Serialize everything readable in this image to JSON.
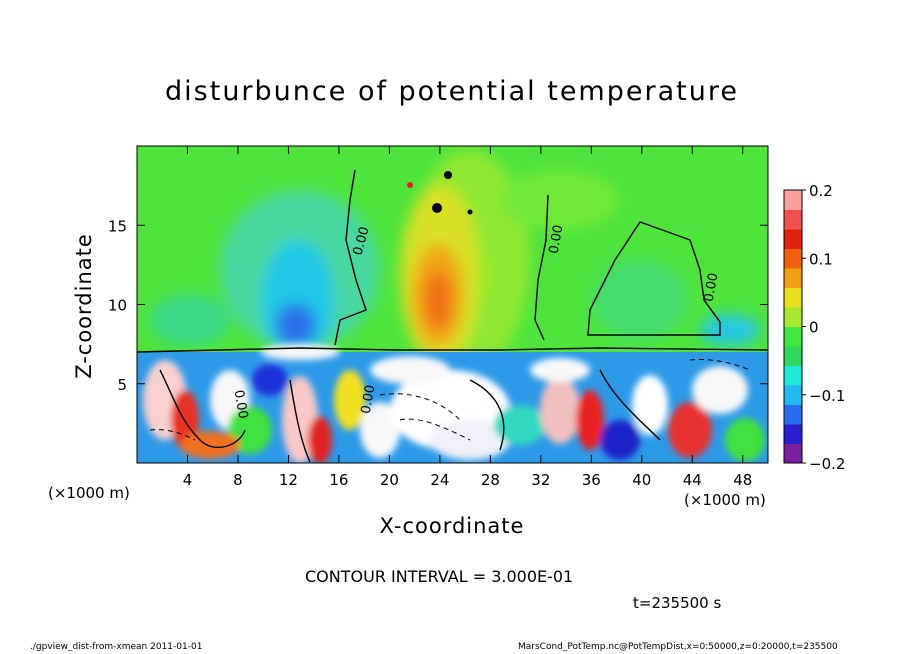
{
  "chart_data": {
    "type": "heatmap",
    "title": "disturbunce of potential temperature",
    "xlabel": "X-coordinate",
    "ylabel": "Z-coordinate",
    "x_unit_label": "(×1000 m)",
    "xlim": [
      0,
      50
    ],
    "ylim": [
      0,
      20
    ],
    "x_ticks": [
      "4",
      "8",
      "12",
      "16",
      "20",
      "24",
      "28",
      "32",
      "36",
      "40",
      "44",
      "48"
    ],
    "x_tick_values": [
      4,
      8,
      12,
      16,
      20,
      24,
      28,
      32,
      36,
      40,
      44,
      48
    ],
    "y_ticks": [
      "5",
      "10",
      "15"
    ],
    "y_tick_values": [
      5,
      10,
      15
    ],
    "colorbar": {
      "range": [
        -0.2,
        0.2
      ],
      "tick_labels": [
        "0.2",
        "0.1",
        "0",
        "−0.1",
        "−0.2"
      ],
      "tick_values": [
        0.2,
        0.1,
        0,
        -0.1,
        -0.2
      ],
      "colors": [
        "#7a1fa0",
        "#2a1fd0",
        "#2a6cf0",
        "#22b8f0",
        "#22e8d8",
        "#30d860",
        "#40e840",
        "#a8e830",
        "#e8e020",
        "#f0a010",
        "#f06010",
        "#e02010",
        "#f05050",
        "#f8a0a0"
      ]
    },
    "contour_label": "0.00",
    "contour_interval_text": "CONTOUR INTERVAL = 3.000E-01",
    "time_text": "t=235500 s"
  },
  "footer": {
    "left": "./gpview_dist-from-xmean  2011-01-01",
    "right": "MarsCond_PotTemp.nc@PotTempDist,x=0:50000,z=0:20000,t=235500"
  }
}
